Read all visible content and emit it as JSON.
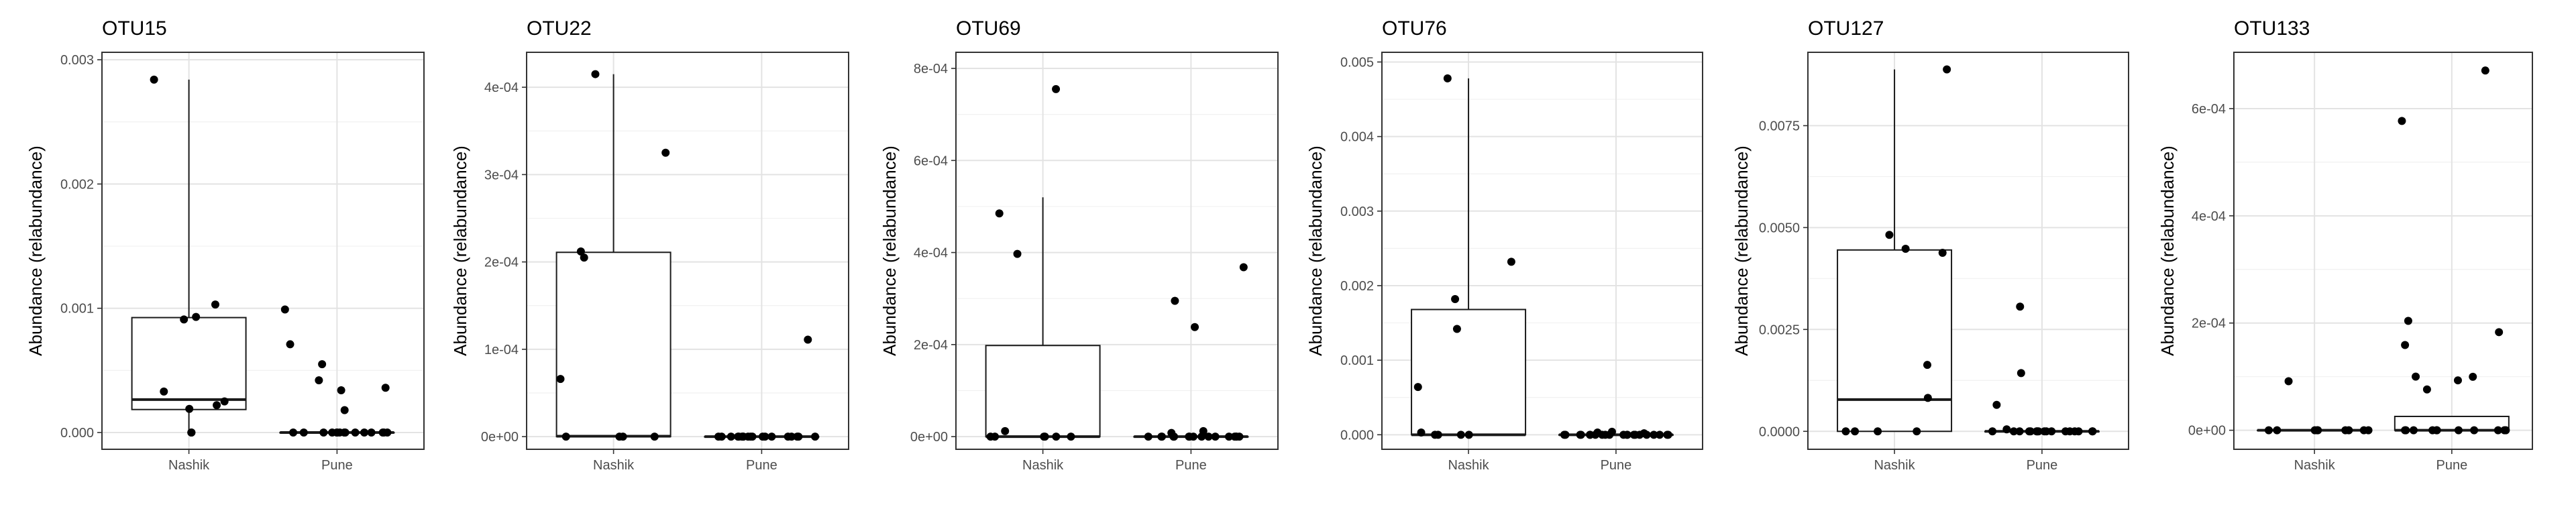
{
  "ylabel": "Abundance (relabundance)",
  "chart_data": [
    {
      "type": "box",
      "title": "OTU15",
      "categories": [
        "Nashik",
        "Pune"
      ],
      "ylim": [
        -0.000135,
        0.00306
      ],
      "yticks": [
        0.0,
        0.001,
        0.002,
        0.003
      ],
      "yticklabels": [
        "0.000",
        "0.001",
        "0.002",
        "0.003"
      ],
      "boxes": [
        {
          "group": "Nashik",
          "min": 0.0,
          "q1": 0.000185,
          "median": 0.000265,
          "q3": 0.000925,
          "max": 0.00284
        },
        {
          "group": "Pune",
          "min": 0.0,
          "q1": 0.0,
          "median": 0.0,
          "q3": 0.0,
          "max": 0.0
        }
      ],
      "points": [
        {
          "group": "Nashik",
          "values": [
            0.00284,
            0.00103,
            0.00093,
            0.00091,
            0.00033,
            0.00025,
            0.00022,
            0.00019,
            0.0,
            0.0
          ]
        },
        {
          "group": "Pune",
          "values": [
            0.00099,
            0.00071,
            0.00055,
            0.00042,
            0.00036,
            0.00034,
            0.00018,
            0.0,
            0.0,
            0.0,
            0.0,
            0.0,
            0.0,
            0.0,
            0.0,
            0.0,
            0.0,
            0.0,
            0.0,
            0.0,
            0.0,
            0.0,
            0.0
          ]
        }
      ]
    },
    {
      "type": "box",
      "title": "OTU22",
      "categories": [
        "Nashik",
        "Pune"
      ],
      "ylim": [
        -1.45e-05,
        0.00044
      ],
      "yticks": [
        0.0,
        0.0001,
        0.0002,
        0.0003,
        0.0004
      ],
      "yticklabels": [
        "0e+00",
        "1e-04",
        "2e-04",
        "3e-04",
        "4e-04"
      ],
      "boxes": [
        {
          "group": "Nashik",
          "min": 0.0,
          "q1": 0.0,
          "median": 5e-07,
          "q3": 0.000211,
          "max": 0.000415
        },
        {
          "group": "Pune",
          "min": 0.0,
          "q1": 0.0,
          "median": 0.0,
          "q3": 0.0,
          "max": 0.0
        }
      ],
      "points": [
        {
          "group": "Nashik",
          "values": [
            0.000415,
            0.000325,
            0.000212,
            0.000205,
            6.6e-05,
            0.0,
            0.0,
            0.0,
            0.0
          ]
        },
        {
          "group": "Pune",
          "values": [
            0.000111,
            0.0,
            0.0,
            0.0,
            0.0,
            0.0,
            0.0,
            0.0,
            0.0,
            0.0,
            0.0,
            0.0,
            0.0,
            0.0,
            0.0,
            0.0,
            0.0,
            0.0,
            0.0,
            0.0
          ]
        }
      ]
    },
    {
      "type": "box",
      "title": "OTU69",
      "categories": [
        "Nashik",
        "Pune"
      ],
      "ylim": [
        -2.75e-05,
        0.000835
      ],
      "yticks": [
        0.0,
        0.0002,
        0.0004,
        0.0006,
        0.0008
      ],
      "yticklabels": [
        "0e+00",
        "2e-04",
        "4e-04",
        "6e-04",
        "8e-04"
      ],
      "boxes": [
        {
          "group": "Nashik",
          "min": 0.0,
          "q1": 0.0,
          "median": 0.0,
          "q3": 0.000198,
          "max": 0.00052
        },
        {
          "group": "Pune",
          "min": 0.0,
          "q1": 0.0,
          "median": 0.0,
          "q3": 0.0,
          "max": 0.0
        }
      ],
      "points": [
        {
          "group": "Nashik",
          "values": [
            0.000755,
            0.000485,
            0.000397,
            1.2e-05,
            0.0,
            0.0,
            0.0,
            0.0,
            0.0,
            0.0
          ]
        },
        {
          "group": "Pune",
          "values": [
            0.000368,
            0.000295,
            0.000238,
            1.2e-05,
            8e-06,
            0.0,
            0.0,
            0.0,
            0.0,
            0.0,
            0.0,
            0.0,
            0.0,
            0.0,
            0.0,
            0.0,
            0.0,
            0.0,
            0.0,
            0.0,
            0.0,
            0.0
          ]
        }
      ]
    },
    {
      "type": "box",
      "title": "OTU76",
      "categories": [
        "Nashik",
        "Pune"
      ],
      "ylim": [
        -0.000195,
        0.00513
      ],
      "yticks": [
        0.0,
        0.001,
        0.002,
        0.003,
        0.004,
        0.005
      ],
      "yticklabels": [
        "0.000",
        "0.001",
        "0.002",
        "0.003",
        "0.004",
        "0.005"
      ],
      "boxes": [
        {
          "group": "Nashik",
          "min": 0.0,
          "q1": 0.0,
          "median": 0.0,
          "q3": 0.00168,
          "max": 0.00478
        },
        {
          "group": "Pune",
          "min": 0.0,
          "q1": 0.0,
          "median": 0.0,
          "q3": 0.0,
          "max": 0.0
        }
      ],
      "points": [
        {
          "group": "Nashik",
          "values": [
            0.00478,
            0.00232,
            0.00182,
            0.00142,
            0.00064,
            3e-05,
            0.0,
            0.0,
            0.0,
            0.0
          ]
        },
        {
          "group": "Pune",
          "values": [
            4e-05,
            3e-05,
            2e-05,
            0.0,
            0.0,
            0.0,
            0.0,
            0.0,
            0.0,
            0.0,
            0.0,
            0.0,
            0.0,
            0.0,
            0.0,
            0.0,
            0.0,
            0.0,
            0.0,
            0.0,
            0.0,
            0.0,
            0.0,
            0.0
          ]
        }
      ]
    },
    {
      "type": "box",
      "title": "OTU127",
      "categories": [
        "Nashik",
        "Pune"
      ],
      "ylim": [
        -0.00044,
        0.0093
      ],
      "yticks": [
        0.0,
        0.0025,
        0.005,
        0.0075
      ],
      "yticklabels": [
        "0.0000",
        "0.0025",
        "0.0050",
        "0.0075"
      ],
      "boxes": [
        {
          "group": "Nashik",
          "min": 0.0,
          "q1": 0.0,
          "median": 0.00078,
          "q3": 0.00445,
          "max": 0.00888
        },
        {
          "group": "Pune",
          "min": 0.0,
          "q1": 0.0,
          "median": 0.0,
          "q3": 0.0,
          "max": 0.0
        }
      ],
      "points": [
        {
          "group": "Nashik",
          "values": [
            0.00888,
            0.00482,
            0.00448,
            0.00438,
            0.00163,
            0.00082,
            0.0,
            0.0,
            0.0,
            0.0
          ]
        },
        {
          "group": "Pune",
          "values": [
            0.00306,
            0.00143,
            0.00065,
            5e-05,
            0.0,
            0.0,
            0.0,
            0.0,
            0.0,
            0.0,
            0.0,
            0.0,
            0.0,
            0.0,
            0.0,
            0.0,
            0.0,
            0.0,
            0.0,
            0.0,
            0.0
          ]
        }
      ]
    },
    {
      "type": "box",
      "title": "OTU133",
      "categories": [
        "Nashik",
        "Pune"
      ],
      "ylim": [
        -3.55e-05,
        0.000705
      ],
      "yticks": [
        0.0,
        0.0002,
        0.0004,
        0.0006
      ],
      "yticklabels": [
        "0e+00",
        "2e-04",
        "4e-04",
        "6e-04"
      ],
      "boxes": [
        {
          "group": "Nashik",
          "min": 0.0,
          "q1": 0.0,
          "median": 0.0,
          "q3": 0.0,
          "max": 0.0
        },
        {
          "group": "Pune",
          "min": 0.0,
          "q1": 0.0,
          "median": 0.0,
          "q3": 2.58e-05,
          "max": 2.58e-05
        }
      ],
      "points": [
        {
          "group": "Nashik",
          "values": [
            9.15e-05,
            0.0,
            0.0,
            0.0,
            0.0,
            0.0,
            0.0,
            0.0,
            0.0,
            0.0
          ]
        },
        {
          "group": "Pune",
          "values": [
            0.000671,
            0.000577,
            0.000204,
            0.000183,
            0.000159,
            0.0001,
            9.97e-05,
            9.31e-05,
            7.62e-05,
            0.0,
            0.0,
            0.0,
            0.0,
            0.0,
            0.0,
            0.0,
            0.0,
            0.0,
            0.0,
            0.0
          ]
        }
      ]
    }
  ]
}
